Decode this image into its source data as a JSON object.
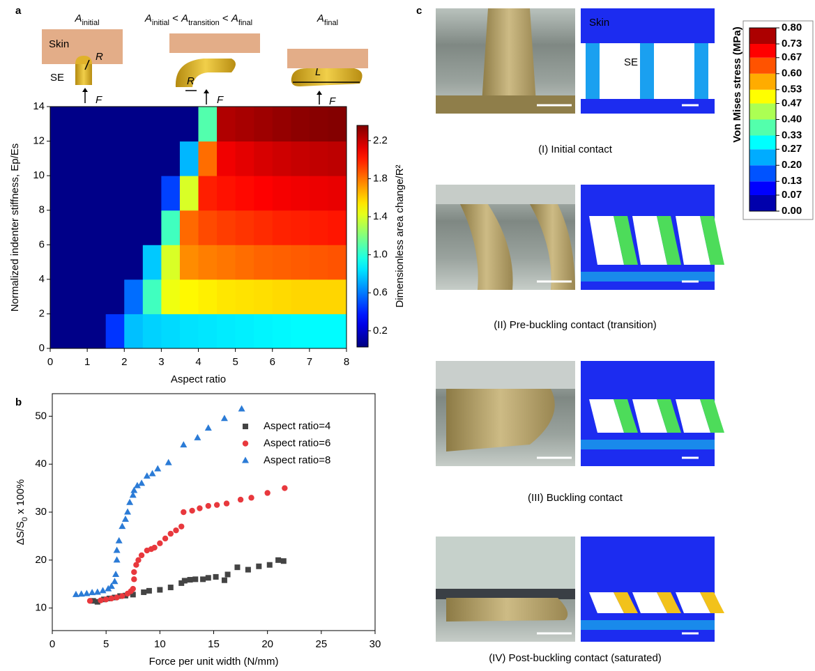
{
  "panel_labels": [
    "a",
    "b",
    "c"
  ],
  "chart_data": [
    {
      "type": "heatmap",
      "headers": [
        [
          {
            "text": "A",
            "sub": false
          },
          {
            "text": "initial",
            "sub": true
          }
        ],
        [
          {
            "text": "A",
            "sub": false
          },
          {
            "text": "initial",
            "sub": true
          },
          {
            "text": " < ",
            "sub": false
          },
          {
            "text": "A",
            "sub": false
          },
          {
            "text": "transition",
            "sub": true
          },
          {
            "text": " < ",
            "sub": false
          },
          {
            "text": "A",
            "sub": false
          },
          {
            "text": "final",
            "sub": true
          }
        ],
        [
          {
            "text": "A",
            "sub": false
          },
          {
            "text": "final",
            "sub": true
          }
        ]
      ],
      "schematic_labels": [
        "Skin",
        "SE",
        "R",
        "F",
        "R",
        "F",
        "L",
        "F"
      ],
      "xlabel": "Aspect ratio",
      "ylabel": "Normalized indenter stiffness, Ep/Es",
      "xbins": [
        0,
        0.5,
        1,
        1.5,
        2,
        2.5,
        3,
        3.5,
        4,
        4.5,
        5,
        5.5,
        6,
        6.5,
        7,
        7.5,
        8
      ],
      "ybins": [
        0,
        2,
        4,
        6,
        8,
        10,
        12,
        14
      ],
      "z": [
        [
          0.05,
          0.05,
          0.05,
          0.44,
          0.76,
          0.8,
          0.82,
          0.84,
          0.85,
          0.86,
          0.87,
          0.88,
          0.89,
          0.9,
          0.9,
          0.9
        ],
        [
          0.05,
          0.05,
          0.05,
          0.05,
          0.57,
          1.05,
          1.45,
          1.5,
          1.52,
          1.54,
          1.55,
          1.56,
          1.57,
          1.58,
          1.58,
          1.58
        ],
        [
          0.05,
          0.05,
          0.05,
          0.05,
          0.05,
          0.78,
          1.4,
          1.75,
          1.78,
          1.8,
          1.82,
          1.84,
          1.85,
          1.86,
          1.87,
          1.88
        ],
        [
          0.05,
          0.05,
          0.05,
          0.05,
          0.05,
          0.05,
          1.05,
          1.83,
          1.9,
          1.93,
          1.95,
          1.97,
          1.99,
          2.0,
          2.01,
          2.02
        ],
        [
          0.05,
          0.05,
          0.05,
          0.05,
          0.05,
          0.05,
          0.47,
          1.4,
          2.0,
          2.03,
          2.05,
          2.07,
          2.09,
          2.1,
          2.11,
          2.12
        ],
        [
          0.05,
          0.05,
          0.05,
          0.05,
          0.05,
          0.05,
          0.05,
          0.74,
          1.82,
          2.1,
          2.13,
          2.16,
          2.18,
          2.2,
          2.21,
          2.22
        ],
        [
          0.05,
          0.05,
          0.05,
          0.05,
          0.05,
          0.05,
          0.05,
          0.05,
          1.09,
          2.25,
          2.27,
          2.29,
          2.31,
          2.33,
          2.34,
          2.35
        ]
      ],
      "xlim": [
        0,
        8
      ],
      "ylim": [
        0,
        14
      ],
      "xticks": [
        0,
        1,
        2,
        3,
        4,
        5,
        6,
        7,
        8
      ],
      "yticks": [
        0,
        2,
        4,
        6,
        8,
        10,
        12,
        14
      ],
      "colormap": "jet",
      "colorbar": {
        "label": "Dimensionless area change/R²",
        "clim": [
          0.03,
          2.36
        ],
        "ticks": [
          0.2,
          0.6,
          {
            "value": 1,
            "label": "1.0"
          },
          1.4,
          1.8,
          2.2
        ]
      }
    },
    {
      "type": "scatter",
      "xlabel": "Force per unit width (N/mm)",
      "ylabel": [
        {
          "text": "ΔS/S",
          "sub": false
        },
        {
          "text": "0",
          "sub": true
        },
        {
          "text": " x 100%",
          "sub": false
        }
      ],
      "xlim": [
        0,
        30
      ],
      "ylim": [
        5.3,
        54.7
      ],
      "xticks": [
        0,
        5,
        10,
        15,
        20,
        25,
        30
      ],
      "yticks": [
        10,
        20,
        30,
        40,
        50
      ],
      "legend": "upper right",
      "series": [
        {
          "name": "Aspect ratio=4",
          "color": "#444444",
          "marker": "square",
          "x": [
            3.8,
            4.2,
            4.8,
            5.3,
            5.8,
            6.3,
            6.8,
            7.5,
            8.5,
            9.0,
            10.0,
            11.0,
            12.0,
            12.3,
            12.8,
            13.3,
            14.0,
            14.5,
            15.2,
            16.0,
            16.3,
            17.2,
            18.2,
            19.2,
            20.2,
            21.0,
            21.5
          ],
          "values": [
            11.5,
            11.3,
            11.8,
            12.0,
            12.2,
            12.5,
            12.6,
            12.8,
            13.3,
            13.6,
            13.8,
            14.3,
            15.2,
            15.7,
            15.9,
            16.0,
            16.0,
            16.3,
            16.5,
            15.8,
            17.0,
            18.5,
            18.0,
            18.7,
            19.0,
            20.0,
            19.8
          ]
        },
        {
          "name": "Aspect ratio=6",
          "color": "#e8383d",
          "marker": "circle",
          "x": [
            3.5,
            4.5,
            5.0,
            5.5,
            6.0,
            6.5,
            7.0,
            7.3,
            7.5,
            7.6,
            7.6,
            7.8,
            8.0,
            8.3,
            8.8,
            9.2,
            9.5,
            10.0,
            10.5,
            11.0,
            11.5,
            12.0,
            12.2,
            13.0,
            13.7,
            14.5,
            15.3,
            16.2,
            17.5,
            18.5,
            20.0,
            21.6
          ],
          "values": [
            11.5,
            11.6,
            11.8,
            12.0,
            12.2,
            12.5,
            13.0,
            13.5,
            14.0,
            16.0,
            17.5,
            19.0,
            20.0,
            21.0,
            22.0,
            22.3,
            22.6,
            23.5,
            24.5,
            25.5,
            26.2,
            27.0,
            30.0,
            30.3,
            30.8,
            31.3,
            31.5,
            31.8,
            32.6,
            33.0,
            34.0,
            35.0
          ]
        },
        {
          "name": "Aspect ratio=8",
          "color": "#2b7bd6",
          "marker": "triangle",
          "x": [
            2.2,
            2.7,
            3.2,
            3.7,
            4.2,
            4.7,
            5.2,
            5.5,
            5.8,
            5.9,
            6.0,
            6.0,
            6.2,
            6.5,
            6.8,
            7.0,
            7.2,
            7.5,
            7.6,
            7.9,
            8.3,
            8.8,
            9.3,
            9.8,
            10.8,
            12.2,
            13.5,
            14.5,
            16.0,
            17.6
          ],
          "values": [
            12.8,
            12.9,
            13.0,
            13.2,
            13.3,
            13.6,
            14.0,
            14.5,
            15.5,
            17.0,
            20.0,
            22.0,
            24.0,
            27.0,
            28.5,
            30.0,
            32.0,
            33.5,
            34.5,
            35.5,
            36.0,
            37.5,
            38.0,
            39.0,
            40.3,
            44.0,
            45.5,
            47.5,
            49.5,
            51.5
          ]
        }
      ]
    }
  ],
  "panel_c": {
    "captions": [
      "(I) Initial contact",
      "(II) Pre-buckling contact (transition)",
      "(III) Buckling contact",
      "(IV) Post-buckling contact (saturated)"
    ],
    "labels": [
      "Skin",
      "SE"
    ],
    "colorbar": {
      "label": "Von Mises stress (MPa)",
      "clim": [
        0,
        0.8
      ],
      "ticks": [
        {
          "value": 0,
          "label": "0.00"
        },
        0.07,
        0.13,
        {
          "value": 0.2,
          "label": "0.20"
        },
        0.27,
        0.33,
        {
          "value": 0.4,
          "label": "0.40"
        },
        0.47,
        0.53,
        {
          "value": 0.6,
          "label": "0.60"
        },
        0.67,
        0.73,
        {
          "value": 0.8,
          "label": "0.80"
        }
      ]
    }
  }
}
